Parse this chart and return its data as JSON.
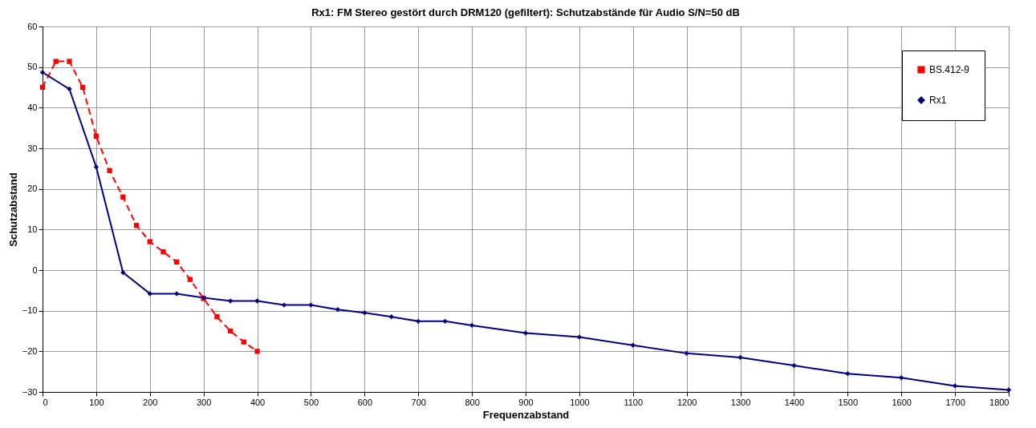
{
  "chart_data": {
    "type": "line",
    "title": "Rx1: FM Stereo gestört durch DRM120 (gefiltert): Schutzabstände für Audio S/N=50 dB",
    "xlabel": "Frequenzabstand",
    "ylabel": "Schutzabstand",
    "xlim": [
      0,
      1800
    ],
    "xticks": [
      0,
      100,
      200,
      300,
      400,
      500,
      600,
      700,
      800,
      900,
      1000,
      1100,
      1200,
      1300,
      1400,
      1500,
      1600,
      1700,
      1800
    ],
    "ylim": [
      -30,
      60
    ],
    "yticks": [
      -30,
      -20,
      -10,
      0,
      10,
      20,
      30,
      40,
      50,
      60
    ],
    "grid": true,
    "legend": "top right",
    "series": [
      {
        "name": "BS.412-9",
        "color": "#ff0000",
        "marker": "square",
        "line_style": "dashed",
        "x": [
          0,
          25,
          50,
          75,
          100,
          125,
          150,
          175,
          200,
          225,
          250,
          275,
          300,
          325,
          350,
          375,
          400
        ],
        "values": [
          45,
          51.4,
          51.4,
          45,
          33,
          24.5,
          18,
          11,
          7,
          4.5,
          2,
          -2.3,
          -7,
          -11.5,
          -15,
          -17.7,
          -20
        ]
      },
      {
        "name": "Rx1",
        "color": "#000080",
        "marker": "diamond",
        "line_style": "solid",
        "x": [
          0,
          50,
          100,
          150,
          200,
          250,
          300,
          350,
          400,
          450,
          500,
          550,
          600,
          650,
          700,
          750,
          800,
          900,
          1000,
          1100,
          1200,
          1300,
          1400,
          1500,
          1600,
          1700,
          1800
        ],
        "values": [
          48.7,
          44.6,
          25.4,
          -0.6,
          -5.8,
          -5.8,
          -6.8,
          -7.6,
          -7.6,
          -8.6,
          -8.6,
          -9.7,
          -10.5,
          -11.5,
          -12.6,
          -12.6,
          -13.6,
          -15.5,
          -16.5,
          -18.5,
          -20.5,
          -21.5,
          -23.5,
          -25.5,
          -26.5,
          -28.5,
          -29.5
        ]
      }
    ]
  }
}
